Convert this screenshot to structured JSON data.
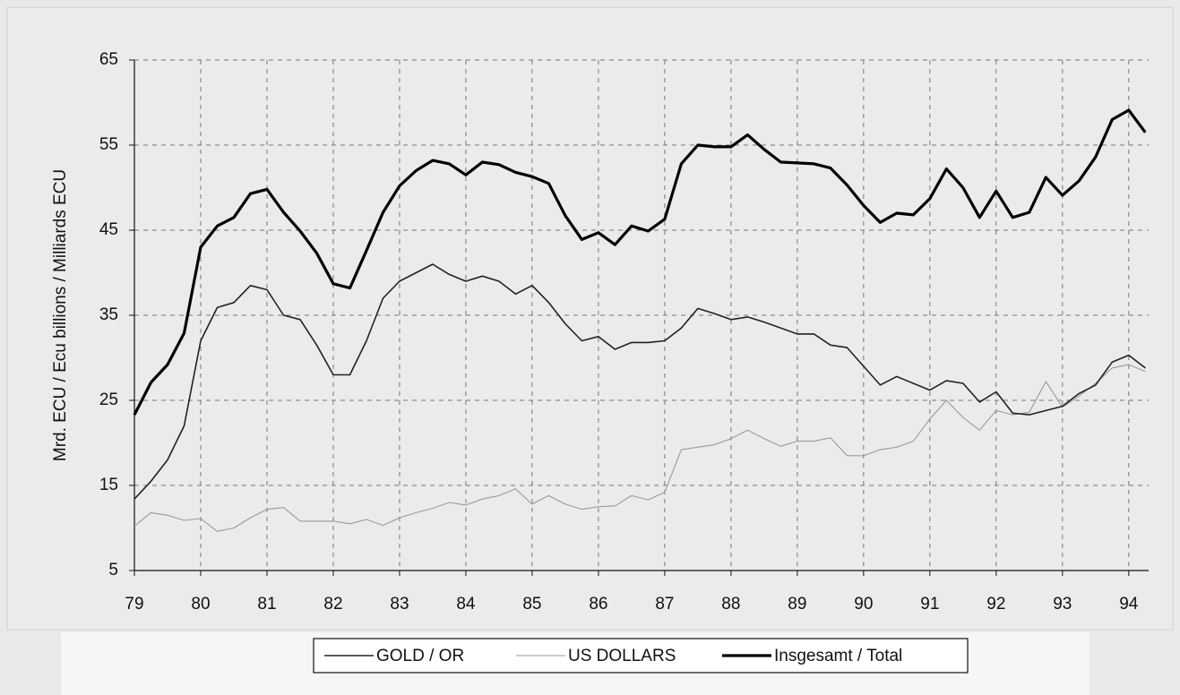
{
  "chart_data": {
    "type": "line",
    "ylabel": "Mrd. ECU / Ecu billions / Milliards ECU",
    "x": [
      79,
      79.25,
      79.5,
      79.75,
      80,
      80.25,
      80.5,
      80.75,
      81,
      81.25,
      81.5,
      81.75,
      82,
      82.25,
      82.5,
      82.75,
      83,
      83.25,
      83.5,
      83.75,
      84,
      84.25,
      84.5,
      84.75,
      85,
      85.25,
      85.5,
      85.75,
      86,
      86.25,
      86.5,
      86.75,
      87,
      87.25,
      87.5,
      87.75,
      88,
      88.25,
      88.5,
      88.75,
      89,
      89.25,
      89.5,
      89.75,
      90,
      90.25,
      90.5,
      90.75,
      91,
      91.25,
      91.5,
      91.75,
      92,
      92.25,
      92.5,
      92.75,
      93,
      93.25,
      93.5,
      93.75,
      94,
      94.25
    ],
    "series": [
      {
        "name": "GOLD / OR",
        "color": "#222222",
        "line_width": 1.6,
        "values": [
          13.4,
          15.5,
          18,
          22,
          32,
          35.9,
          36.5,
          38.5,
          38,
          35,
          34.5,
          31.5,
          28,
          28,
          32,
          37,
          39,
          40,
          41,
          39.8,
          39,
          39.6,
          39,
          37.5,
          38.5,
          36.5,
          34,
          32,
          32.5,
          31,
          31.8,
          31.8,
          32,
          33.5,
          35.8,
          35.2,
          34.5,
          34.8,
          34.2,
          33.5,
          32.8,
          32.8,
          31.5,
          31.2,
          29,
          26.8,
          27.8,
          27,
          26.2,
          27.3,
          27,
          24.8,
          26,
          23.5,
          23.3,
          23.8,
          24.3,
          25.8,
          26.8,
          29.5,
          30.3,
          28.8
        ]
      },
      {
        "name": "US DOLLARS",
        "color": "#9a9a9a",
        "line_width": 1.1,
        "values": [
          10.2,
          11.8,
          11.5,
          10.9,
          11.1,
          9.6,
          10,
          11.2,
          12.2,
          12.4,
          10.8,
          10.8,
          10.8,
          10.5,
          11,
          10.3,
          11.2,
          11.8,
          12.3,
          13,
          12.7,
          13.4,
          13.8,
          14.6,
          12.8,
          13.8,
          12.8,
          12.2,
          12.5,
          12.6,
          13.8,
          13.3,
          14.2,
          19.2,
          19.5,
          19.8,
          20.5,
          21.5,
          20.5,
          19.6,
          20.2,
          20.2,
          20.6,
          18.5,
          18.5,
          19.2,
          19.5,
          20.2,
          22.8,
          25,
          23,
          21.5,
          23.8,
          23.3,
          23.6,
          27.2,
          24.2,
          25.5,
          27,
          28.8,
          29.2,
          28.4
        ]
      },
      {
        "name": "Insgesamt / Total",
        "color": "#000000",
        "line_width": 3.2,
        "values": [
          23.3,
          27.1,
          29.2,
          32.9,
          43,
          45.5,
          46.5,
          49.3,
          49.8,
          47.1,
          44.9,
          42.3,
          38.7,
          38.2,
          42.6,
          47.1,
          50.2,
          52,
          53.2,
          52.8,
          51.5,
          53,
          52.7,
          51.8,
          51.3,
          50.5,
          46.7,
          43.9,
          44.7,
          43.3,
          45.5,
          44.9,
          46.3,
          52.8,
          55,
          54.8,
          54.8,
          56.2,
          54.5,
          53,
          52.9,
          52.8,
          52.3,
          50.3,
          47.9,
          45.9,
          47,
          46.8,
          48.7,
          52.2,
          50,
          46.5,
          49.6,
          46.5,
          47.1,
          51.2,
          49.1,
          50.8,
          53.6,
          58,
          59.1,
          56.5
        ]
      }
    ],
    "xlim": [
      79,
      94.3
    ],
    "xticks": [
      79,
      80,
      81,
      82,
      83,
      84,
      85,
      86,
      87,
      88,
      89,
      90,
      91,
      92,
      93,
      94
    ],
    "ylim": [
      5,
      65
    ],
    "yticks": [
      5,
      15,
      25,
      35,
      45,
      55,
      65
    ],
    "grid": true,
    "legend": "bottom"
  }
}
